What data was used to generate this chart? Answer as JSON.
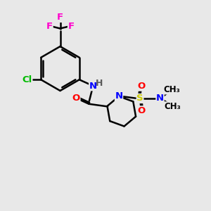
{
  "bg": "#e8e8e8",
  "bond_color": "#000000",
  "bond_lw": 1.8,
  "atom_colors": {
    "C": "#000000",
    "H": "#5a5a5a",
    "N": "#0000ff",
    "O": "#ff0000",
    "F": "#ff00cc",
    "Cl": "#00bb00",
    "S": "#cccc00"
  },
  "fs": 9.5,
  "fs_small": 8.5
}
